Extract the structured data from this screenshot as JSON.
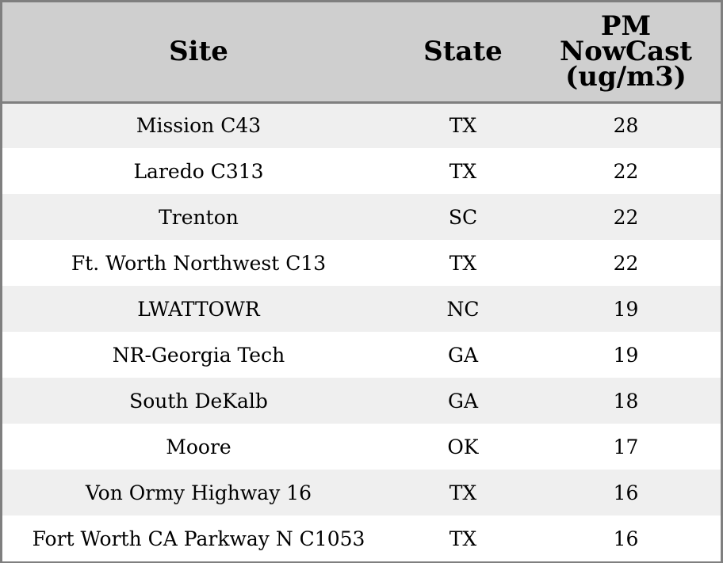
{
  "chart_data": {
    "type": "table",
    "columns": [
      {
        "key": "site",
        "lines": [
          "Site"
        ]
      },
      {
        "key": "state",
        "lines": [
          "State"
        ]
      },
      {
        "key": "pm",
        "lines": [
          "PM",
          "NowCast",
          "(ug/m3)"
        ]
      }
    ],
    "rows": [
      {
        "site": "Mission C43",
        "state": "TX",
        "pm": 28
      },
      {
        "site": "Laredo C313",
        "state": "TX",
        "pm": 22
      },
      {
        "site": "Trenton",
        "state": "SC",
        "pm": 22
      },
      {
        "site": "Ft. Worth Northwest C13",
        "state": "TX",
        "pm": 22
      },
      {
        "site": "LWATTOWR",
        "state": "NC",
        "pm": 19
      },
      {
        "site": "NR-Georgia Tech",
        "state": "GA",
        "pm": 19
      },
      {
        "site": "South DeKalb",
        "state": "GA",
        "pm": 18
      },
      {
        "site": "Moore",
        "state": "OK",
        "pm": 17
      },
      {
        "site": "Von Ormy Highway 16",
        "state": "TX",
        "pm": 16
      },
      {
        "site": "Fort Worth CA Parkway N C1053",
        "state": "TX",
        "pm": 16
      }
    ]
  },
  "colors": {
    "header_bg": "#cfcfcf",
    "row_alt_bg": "#efefef",
    "row_bg": "#ffffff",
    "border": "#7f7f7f"
  }
}
